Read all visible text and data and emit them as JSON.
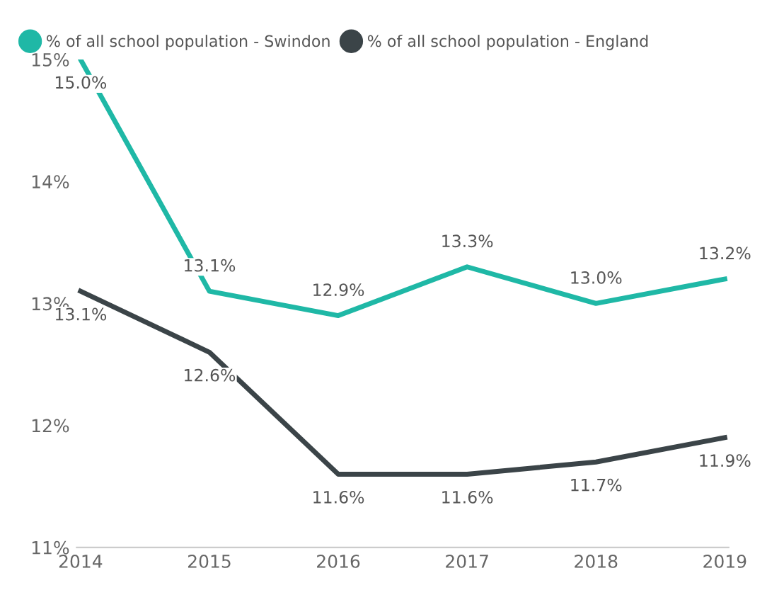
{
  "chart_data": {
    "type": "line",
    "categories": [
      "2014",
      "2015",
      "2016",
      "2017",
      "2018",
      "2019"
    ],
    "series": [
      {
        "name": "% of all school population - Swindon",
        "color": "#1fb8a6",
        "values": [
          15.0,
          13.1,
          12.9,
          13.3,
          13.0,
          13.2
        ],
        "value_labels": [
          "15.0%",
          "13.1%",
          "12.9%",
          "13.3%",
          "13.0%",
          "13.2%"
        ]
      },
      {
        "name": "% of all school population - England",
        "color": "#3b4448",
        "values": [
          13.1,
          12.6,
          11.6,
          11.6,
          11.7,
          11.9
        ],
        "value_labels": [
          "13.1%",
          "12.6%",
          "11.6%",
          "11.6%",
          "11.7%",
          "11.9%"
        ]
      }
    ],
    "ylim": [
      11,
      15
    ],
    "yticks": [
      {
        "value": 11,
        "label": "11%"
      },
      {
        "value": 12,
        "label": "12%"
      },
      {
        "value": 13,
        "label": "13%"
      },
      {
        "value": 14,
        "label": "14%"
      },
      {
        "value": 15,
        "label": "15%"
      }
    ],
    "legend": "top left",
    "marker": "none",
    "line_style": "solid",
    "grid": false
  }
}
